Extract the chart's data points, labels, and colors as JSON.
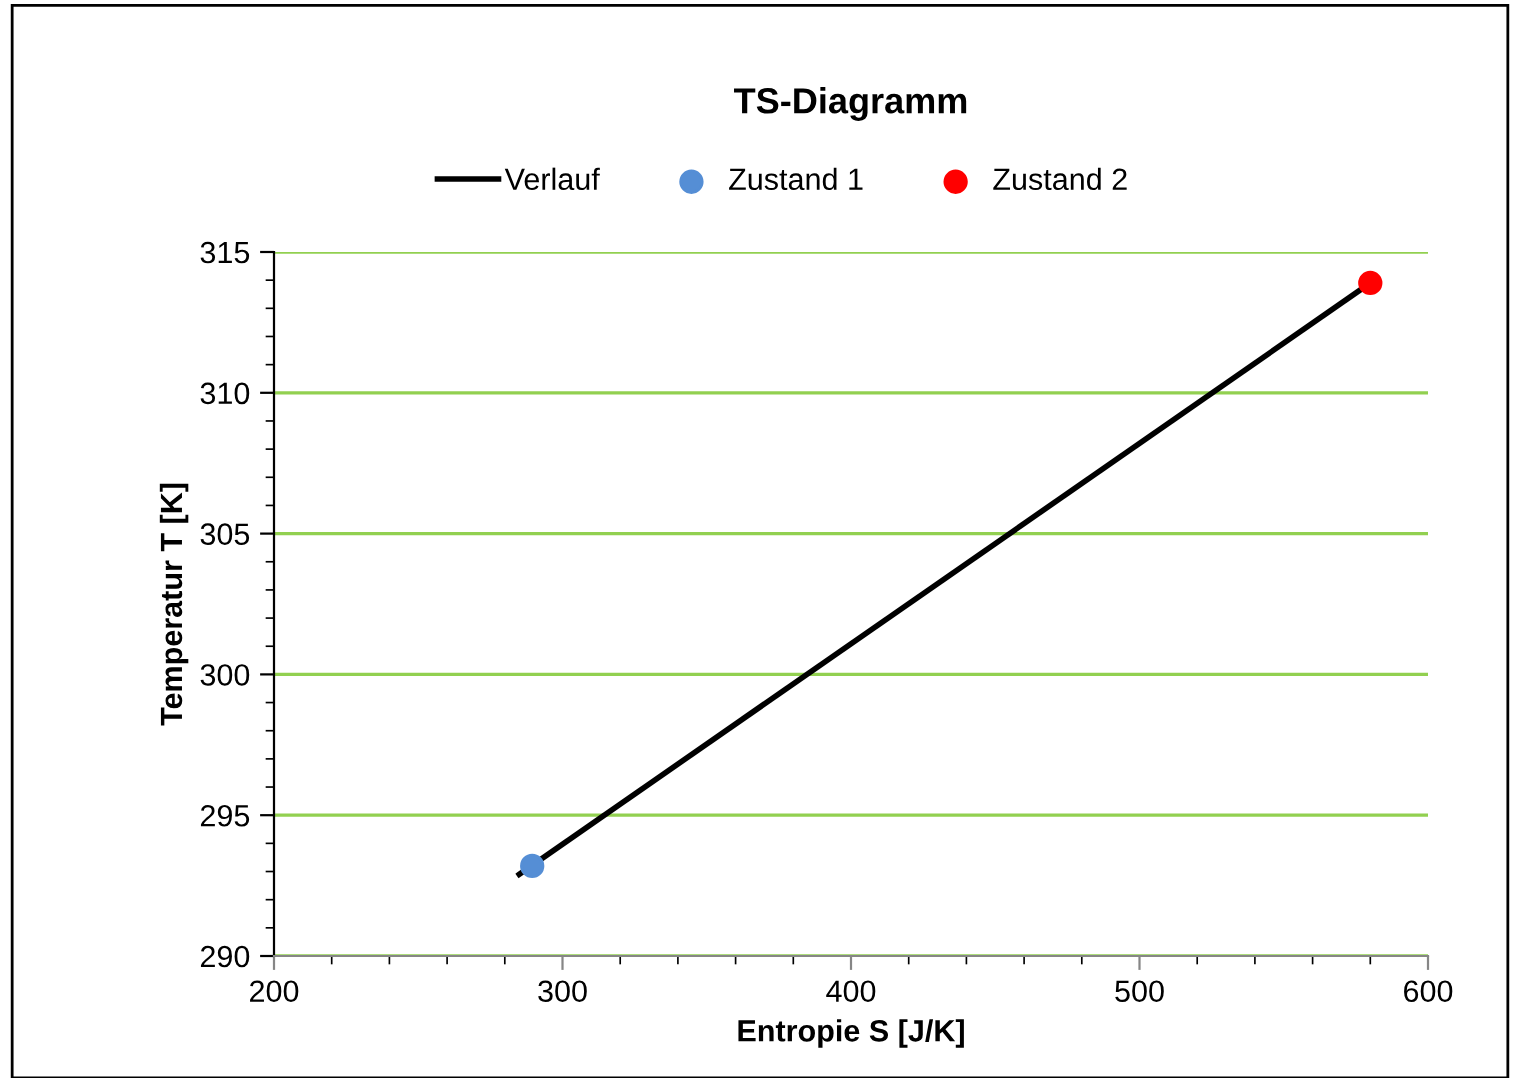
{
  "chart_data": {
    "type": "line",
    "title": "TS-Diagramm",
    "xlabel": "Entropie S [J/K]",
    "ylabel": "Temperatur T [K]",
    "series": [
      {
        "name": "Verlauf",
        "color": "#000000",
        "x": [
          285,
          580
        ],
        "values": [
          292.9,
          313.9
        ],
        "marker": "none"
      },
      {
        "name": "Zustand 1",
        "type": "scatter",
        "color": "#558ed5",
        "x": [
          289.5
        ],
        "values": [
          293.2
        ],
        "marker": "circle"
      },
      {
        "name": "Zustand 2",
        "type": "scatter",
        "color": "#ff0000",
        "x": [
          580
        ],
        "values": [
          313.9
        ],
        "marker": "circle"
      }
    ],
    "xlim": [
      200,
      600
    ],
    "xticks": [
      200,
      300,
      400,
      500,
      600
    ],
    "ylim": [
      290,
      315
    ],
    "yticks": [
      290,
      295,
      300,
      305,
      310,
      315
    ],
    "grid": "y",
    "legend": "top"
  }
}
